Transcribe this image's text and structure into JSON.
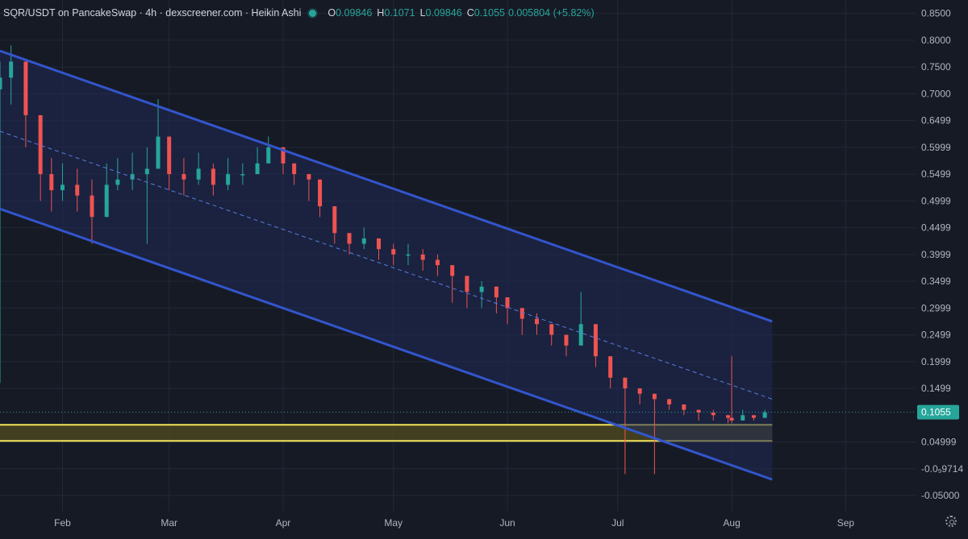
{
  "header": {
    "symbol_title": "SQR/USDT on PancakeSwap · 4h · dexscreener.com · Heikin Ashi",
    "open_label": "O",
    "open_value": "0.09846",
    "high_label": "H",
    "high_value": "0.1071",
    "low_label": "L",
    "low_value": "0.09846",
    "close_label": "C",
    "close_value": "0.1055",
    "change_text": "0.005804 (+5.82%)"
  },
  "colors": {
    "background": "#161a25",
    "up": "#26a69a",
    "down": "#ef5350",
    "channel_line": "#3355cc",
    "channel_fill": "#1f2a55",
    "support_line": "#f2e45a",
    "support_fill": "#4a4620"
  },
  "icons": {
    "settings": "gear-icon"
  },
  "chart_data": {
    "type": "candlestick",
    "style": "Heikin Ashi",
    "timeframe": "4h",
    "x_tick_labels": [
      "Feb",
      "Mar",
      "Apr",
      "May",
      "Jun",
      "Jul",
      "Aug",
      "Sep"
    ],
    "x_tick_dates": [
      "2024-02-01",
      "2024-03-01",
      "2024-04-01",
      "2024-05-01",
      "2024-06-01",
      "2024-07-01",
      "2024-08-01",
      "2024-09-01"
    ],
    "x_range": [
      "2024-01-15",
      "2024-09-20"
    ],
    "y_tick_labels": [
      "0.8500",
      "0.8000",
      "0.7500",
      "0.7000",
      "0.6499",
      "0.5999",
      "0.5499",
      "0.4999",
      "0.4499",
      "0.3999",
      "0.3499",
      "0.2999",
      "0.2499",
      "0.1999",
      "0.1499",
      "0.04999",
      "-0.0₉9714",
      "-0.05000"
    ],
    "y_tick_values": [
      0.85,
      0.8,
      0.75,
      0.7,
      0.6499,
      0.5999,
      0.5499,
      0.4999,
      0.4499,
      0.3999,
      0.3499,
      0.2999,
      0.2499,
      0.1999,
      0.1499,
      0.04999,
      0,
      -0.05
    ],
    "y_range": [
      -0.08,
      0.875
    ],
    "last_price": {
      "value": 0.1055,
      "label": "0.1055"
    },
    "grid": true,
    "price_series": {
      "date": [
        "2024-01-15",
        "2024-01-18",
        "2024-01-22",
        "2024-01-26",
        "2024-01-29",
        "2024-02-01",
        "2024-02-05",
        "2024-02-09",
        "2024-02-13",
        "2024-02-16",
        "2024-02-20",
        "2024-02-24",
        "2024-02-27",
        "2024-03-01",
        "2024-03-05",
        "2024-03-09",
        "2024-03-13",
        "2024-03-17",
        "2024-03-21",
        "2024-03-25",
        "2024-03-28",
        "2024-04-01",
        "2024-04-04",
        "2024-04-08",
        "2024-04-11",
        "2024-04-15",
        "2024-04-19",
        "2024-04-23",
        "2024-04-27",
        "2024-05-01",
        "2024-05-05",
        "2024-05-09",
        "2024-05-13",
        "2024-05-17",
        "2024-05-21",
        "2024-05-25",
        "2024-05-29",
        "2024-06-01",
        "2024-06-05",
        "2024-06-09",
        "2024-06-13",
        "2024-06-17",
        "2024-06-21",
        "2024-06-25",
        "2024-06-29",
        "2024-07-03",
        "2024-07-07",
        "2024-07-11",
        "2024-07-15",
        "2024-07-19",
        "2024-07-23",
        "2024-07-27",
        "2024-07-31",
        "2024-08-01",
        "2024-08-04",
        "2024-08-07",
        "2024-08-10"
      ],
      "close": [
        0.73,
        0.76,
        0.66,
        0.55,
        0.52,
        0.53,
        0.51,
        0.47,
        0.53,
        0.54,
        0.55,
        0.56,
        0.62,
        0.55,
        0.54,
        0.56,
        0.53,
        0.55,
        0.55,
        0.57,
        0.6,
        0.57,
        0.55,
        0.54,
        0.49,
        0.44,
        0.42,
        0.43,
        0.41,
        0.4,
        0.4,
        0.39,
        0.38,
        0.36,
        0.33,
        0.34,
        0.32,
        0.3,
        0.28,
        0.27,
        0.25,
        0.23,
        0.27,
        0.21,
        0.17,
        0.15,
        0.14,
        0.13,
        0.12,
        0.11,
        0.105,
        0.1,
        0.095,
        0.09,
        0.1,
        0.095,
        0.1055
      ],
      "high": [
        0.76,
        0.79,
        0.72,
        0.62,
        0.58,
        0.57,
        0.56,
        0.54,
        0.57,
        0.58,
        0.59,
        0.6,
        0.69,
        0.62,
        0.58,
        0.59,
        0.57,
        0.58,
        0.57,
        0.6,
        0.62,
        0.6,
        0.57,
        0.55,
        0.52,
        0.46,
        0.44,
        0.45,
        0.43,
        0.42,
        0.42,
        0.41,
        0.4,
        0.38,
        0.35,
        0.35,
        0.34,
        0.32,
        0.3,
        0.29,
        0.27,
        0.25,
        0.33,
        0.24,
        0.19,
        0.17,
        0.15,
        0.14,
        0.13,
        0.12,
        0.11,
        0.11,
        0.1,
        0.21,
        0.11,
        0.1,
        0.11
      ],
      "low": [
        0.16,
        0.68,
        0.6,
        0.5,
        0.48,
        0.5,
        0.48,
        0.42,
        0.5,
        0.52,
        0.52,
        0.42,
        0.56,
        0.52,
        0.51,
        0.53,
        0.51,
        0.52,
        0.53,
        0.55,
        0.57,
        0.55,
        0.53,
        0.5,
        0.47,
        0.42,
        0.4,
        0.41,
        0.39,
        0.38,
        0.38,
        0.37,
        0.36,
        0.31,
        0.3,
        0.3,
        0.29,
        0.27,
        0.25,
        0.25,
        0.23,
        0.21,
        0.24,
        0.19,
        0.15,
        -0.01,
        0.12,
        -0.01,
        0.11,
        0.1,
        0.09,
        0.09,
        0.085,
        0.085,
        0.09,
        0.09,
        0.098
      ]
    },
    "channel": {
      "upper": {
        "start": {
          "date": "2024-01-15",
          "value": 0.78
        },
        "end": {
          "date": "2024-08-12",
          "value": 0.275
        }
      },
      "lower": {
        "start": {
          "date": "2024-01-15",
          "value": 0.485
        },
        "end": {
          "date": "2024-08-12",
          "value": -0.02
        }
      },
      "midline": {
        "start": {
          "date": "2024-01-15",
          "value": 0.63
        },
        "end": {
          "date": "2024-08-12",
          "value": 0.13
        }
      }
    },
    "support_zone": {
      "top": 0.082,
      "bottom": 0.052,
      "end_date": "2024-08-12"
    }
  }
}
